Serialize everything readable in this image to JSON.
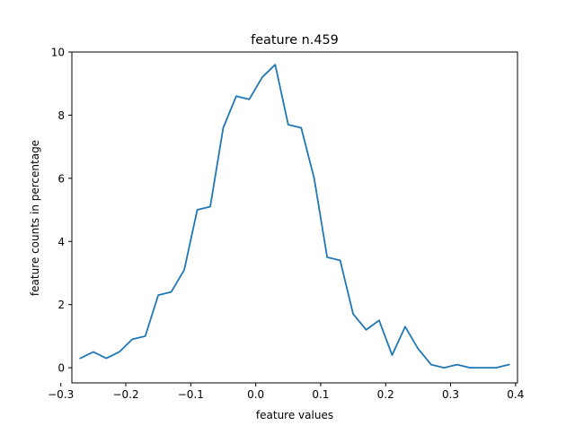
{
  "chart_data": {
    "type": "line",
    "title": "feature n.459",
    "xlabel": "feature values",
    "ylabel": "feature counts in percentage",
    "xlim": [
      -0.283,
      0.403
    ],
    "ylim": [
      -0.48,
      10.0
    ],
    "xticks": [
      -0.3,
      -0.2,
      -0.1,
      0.0,
      0.1,
      0.2,
      0.3,
      0.4
    ],
    "xtick_labels": [
      "−0.3",
      "−0.2",
      "−0.1",
      "0.0",
      "0.1",
      "0.2",
      "0.3",
      "0.4"
    ],
    "yticks": [
      0,
      2,
      4,
      6,
      8,
      10
    ],
    "ytick_labels": [
      "0",
      "2",
      "4",
      "6",
      "8",
      "10"
    ],
    "grid": false,
    "legend": false,
    "series": [
      {
        "color": "#1f77b4",
        "x": [
          -0.27,
          -0.25,
          -0.23,
          -0.21,
          -0.19,
          -0.17,
          -0.15,
          -0.13,
          -0.11,
          -0.09,
          -0.07,
          -0.05,
          -0.03,
          -0.01,
          0.01,
          0.03,
          0.05,
          0.07,
          0.09,
          0.11,
          0.13,
          0.15,
          0.17,
          0.19,
          0.21,
          0.23,
          0.25,
          0.27,
          0.29,
          0.31,
          0.33,
          0.35,
          0.37,
          0.39
        ],
        "y": [
          0.3,
          0.5,
          0.3,
          0.5,
          0.9,
          1.0,
          2.3,
          2.4,
          3.1,
          5.0,
          5.1,
          7.6,
          8.6,
          8.5,
          9.2,
          9.6,
          7.7,
          7.6,
          6.0,
          3.5,
          3.4,
          1.7,
          1.2,
          1.5,
          0.4,
          1.3,
          0.6,
          0.1,
          0.0,
          0.1,
          0.0,
          0.0,
          0.0,
          0.1
        ]
      }
    ]
  }
}
